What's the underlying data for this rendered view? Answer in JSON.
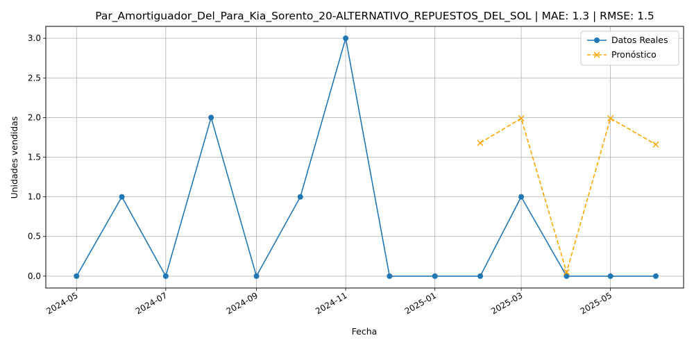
{
  "chart_data": {
    "type": "line",
    "title": "Par_Amortiguador_Del_Para_Kia_Sorento_20-ALTERNATIVO_REPUESTOS_DEL_SOL | MAE: 1.3 | RMSE: 1.5",
    "xlabel": "Fecha",
    "ylabel": "Unidades vendidas",
    "x_ticks": [
      "2024-05",
      "2024-07",
      "2024-09",
      "2024-11",
      "2025-01",
      "2025-03",
      "2025-05"
    ],
    "y_ticks": [
      "0.0",
      "0.5",
      "1.0",
      "1.5",
      "2.0",
      "2.5",
      "3.0"
    ],
    "xlim": [
      "2024-04-10",
      "2025-06-20"
    ],
    "ylim": [
      -0.15,
      3.15
    ],
    "grid": true,
    "legend_position": "top-right",
    "series": [
      {
        "name": "Datos Reales",
        "color": "#1f77b4",
        "marker": "circle",
        "linestyle": "solid",
        "x": [
          "2024-05-01",
          "2024-06-01",
          "2024-07-01",
          "2024-08-01",
          "2024-09-01",
          "2024-10-01",
          "2024-11-01",
          "2024-12-01",
          "2025-01-01",
          "2025-02-01",
          "2025-03-01",
          "2025-04-01",
          "2025-05-01",
          "2025-06-01"
        ],
        "values": [
          0,
          1,
          0,
          2,
          0,
          1,
          3,
          0,
          0,
          0,
          1,
          0,
          0,
          0
        ]
      },
      {
        "name": "Pronóstico",
        "color": "#ffa500",
        "marker": "x",
        "linestyle": "dashed",
        "x": [
          "2025-02-01",
          "2025-03-01",
          "2025-04-01",
          "2025-05-01",
          "2025-06-01"
        ],
        "values": [
          1.68,
          1.99,
          0.05,
          1.99,
          1.66
        ]
      }
    ]
  }
}
